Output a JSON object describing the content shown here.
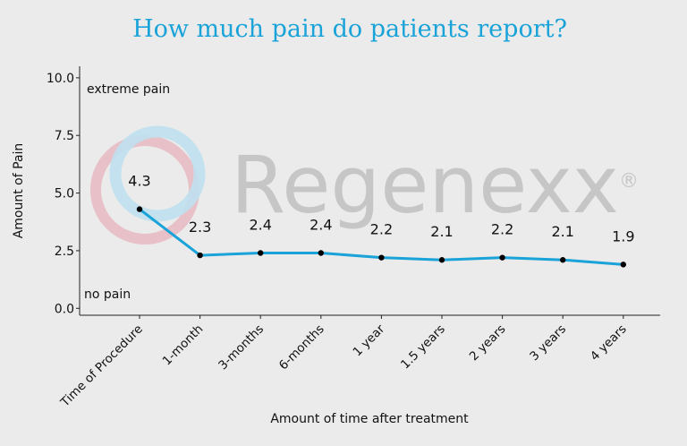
{
  "chart_data": {
    "type": "line",
    "title": "How much pain do patients report?",
    "xlabel": "Amount of time after treatment",
    "ylabel": "Amount of Pain",
    "categories": [
      "Time of Procedure",
      "1-month",
      "3-months",
      "6-months",
      "1 year",
      "1.5 years",
      "2 years",
      "3 years",
      "4 years"
    ],
    "values": [
      4.3,
      2.3,
      2.4,
      2.4,
      2.2,
      2.1,
      2.2,
      2.1,
      1.9
    ],
    "data_labels": [
      "4.3",
      "2.3",
      "2.4",
      "2.4",
      "2.2",
      "2.1",
      "2.2",
      "2.1",
      "1.9"
    ],
    "ylim": [
      -0.3,
      10.5
    ],
    "yticks": [
      0.0,
      2.5,
      5.0,
      7.5,
      10.0
    ],
    "ytick_labels": [
      "0.0",
      "2.5",
      "5.0",
      "7.5",
      "10.0"
    ],
    "annotations": {
      "top": "extreme pain",
      "bottom": "no pain"
    },
    "line_color": "#1aa3d8",
    "marker_color": "#000000",
    "grid": false,
    "legend": "none"
  },
  "watermark": {
    "text": "Regenexx",
    "mark": "®",
    "colors": {
      "pink": "#e8b9c1",
      "blue": "#bfe0ef",
      "gray": "#c6c6c6"
    }
  }
}
